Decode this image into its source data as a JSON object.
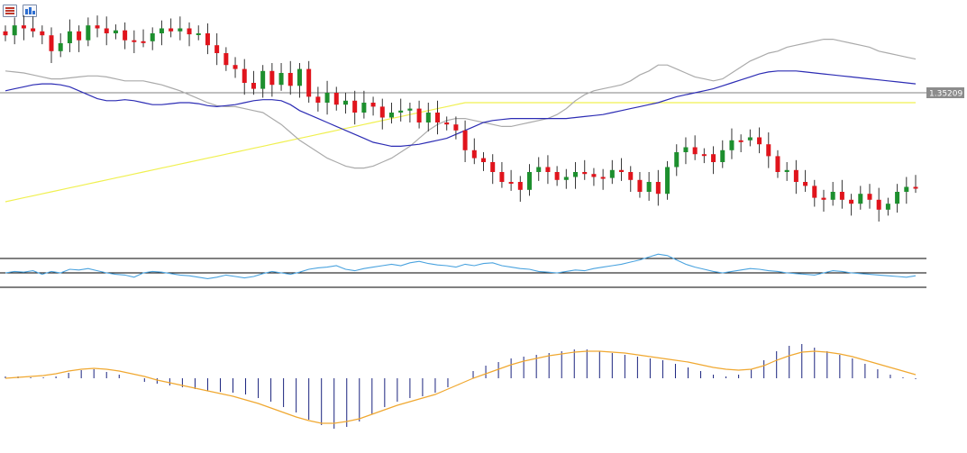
{
  "toolbar": {
    "buttons": [
      {
        "icon": "indicator-list-icon"
      },
      {
        "icon": "object-list-icon"
      }
    ]
  },
  "price_label": "1.35209",
  "colors": {
    "bull": "#1d8f2e",
    "bear": "#e0141c",
    "ma_slow": "#2c2cb4",
    "ma_fast": "#aaaaaa",
    "ma_long": "#f0f050",
    "rsi": "#4aa3df",
    "macd_hist": "#1a237e",
    "macd_signal": "#f0a830",
    "price_line": "#808080",
    "price_tag_bg": "#8c8c8c"
  },
  "chart_data": [
    {
      "type": "candlestick",
      "last_price": 1.35209,
      "indicators": [
        "moving-average-slow",
        "moving-average-fast",
        "moving-average-long"
      ],
      "close": [
        62,
        52,
        55,
        58,
        62,
        78,
        70,
        58,
        67,
        52,
        55,
        60,
        57,
        67,
        68,
        68,
        60,
        55,
        58,
        55,
        61,
        60,
        72,
        80,
        92,
        96,
        110,
        116,
        98,
        112,
        100,
        113,
        96,
        124,
        130,
        120,
        132,
        128,
        140,
        130,
        134,
        145,
        140,
        138,
        136,
        150,
        140,
        150,
        152,
        158,
        178,
        186,
        190,
        200,
        210,
        210,
        218,
        200,
        195,
        200,
        208,
        205,
        200,
        202,
        205,
        206,
        198,
        200,
        208,
        220,
        210,
        222,
        195,
        180,
        175,
        182,
        182,
        190,
        178,
        168,
        168,
        165,
        172,
        184,
        200,
        198,
        210,
        214,
        226,
        228,
        220,
        228,
        232,
        222,
        228,
        238,
        232,
        220,
        215,
        215
      ],
      "ma_slow": [
        118,
        116,
        114,
        112,
        111,
        111,
        112,
        114,
        118,
        122,
        126,
        128,
        128,
        127,
        128,
        130,
        132,
        132,
        131,
        130,
        130,
        131,
        133,
        134,
        133,
        132,
        130,
        128,
        127,
        127,
        128,
        132,
        138,
        142,
        146,
        150,
        154,
        158,
        162,
        166,
        170,
        172,
        174,
        174,
        173,
        172,
        170,
        168,
        166,
        162,
        158,
        154,
        150,
        148,
        147,
        146,
        146,
        146,
        146,
        146,
        146,
        146,
        145,
        144,
        143,
        142,
        140,
        138,
        136,
        134,
        132,
        130,
        127,
        124,
        122,
        120,
        118,
        116,
        113,
        110,
        107,
        104,
        101,
        99,
        98,
        98,
        98,
        99,
        100,
        101,
        102,
        103,
        104,
        105,
        106,
        107,
        108,
        109,
        110,
        111
      ],
      "ma_fast": [
        98,
        99,
        100,
        102,
        104,
        106,
        106,
        105,
        104,
        103,
        103,
        104,
        106,
        108,
        108,
        108,
        110,
        112,
        115,
        118,
        122,
        126,
        130,
        133,
        134,
        134,
        136,
        138,
        140,
        146,
        152,
        160,
        168,
        174,
        180,
        186,
        190,
        194,
        196,
        196,
        194,
        190,
        186,
        180,
        174,
        166,
        158,
        152,
        148,
        146,
        146,
        148,
        150,
        152,
        154,
        154,
        152,
        150,
        148,
        146,
        142,
        136,
        128,
        122,
        118,
        116,
        114,
        112,
        108,
        102,
        98,
        92,
        92,
        96,
        100,
        104,
        106,
        108,
        106,
        100,
        94,
        88,
        84,
        80,
        78,
        74,
        72,
        70,
        68,
        66,
        66,
        68,
        70,
        72,
        74,
        78,
        80,
        82,
        84,
        86
      ],
      "ma_long": [
        230,
        228,
        226,
        224,
        222,
        220,
        218,
        216,
        214,
        212,
        210,
        208,
        206,
        204,
        202,
        200,
        198,
        196,
        194,
        192,
        190,
        188,
        186,
        184,
        182,
        180,
        178,
        176,
        174,
        172,
        170,
        168,
        166,
        164,
        162,
        160,
        158,
        156,
        154,
        152,
        150,
        148,
        146,
        144,
        142,
        140,
        138,
        136,
        134,
        132,
        130,
        130,
        130,
        130,
        130,
        130,
        130,
        130,
        130,
        130,
        130,
        130,
        130,
        130,
        130,
        130,
        130,
        130,
        130,
        130,
        130,
        130,
        130,
        130,
        130,
        130,
        130,
        130,
        130,
        130,
        130,
        130,
        130,
        130,
        130,
        130,
        130,
        130,
        130,
        130,
        130,
        130,
        130,
        130,
        130,
        130,
        130,
        130,
        130,
        130
      ]
    },
    {
      "type": "line",
      "levels": [
        70,
        50,
        30
      ],
      "ylim": [
        20,
        80
      ],
      "values": [
        50,
        52,
        51,
        53,
        48,
        52,
        50,
        55,
        54,
        56,
        53,
        50,
        48,
        47,
        44,
        50,
        52,
        51,
        49,
        47,
        46,
        44,
        42,
        44,
        47,
        45,
        43,
        45,
        49,
        52,
        50,
        48,
        51,
        55,
        57,
        58,
        60,
        55,
        53,
        56,
        58,
        60,
        62,
        60,
        64,
        66,
        63,
        61,
        60,
        58,
        62,
        60,
        63,
        64,
        60,
        58,
        56,
        55,
        52,
        51,
        50,
        52,
        54,
        53,
        56,
        58,
        60,
        62,
        65,
        68,
        72,
        76,
        74,
        68,
        62,
        58,
        55,
        52,
        50,
        52,
        54,
        56,
        55,
        53,
        52,
        50,
        49,
        48,
        47,
        50,
        53,
        52,
        50,
        49,
        48,
        47,
        46,
        45,
        44,
        46
      ]
    },
    {
      "type": "bar",
      "series": [
        {
          "values": [
            0.2,
            0.2,
            0.1,
            0.1,
            0.2,
            0.6,
            0.9,
            1.0,
            0.7,
            0.4,
            0.0,
            -0.4,
            -0.6,
            -0.8,
            -1.0,
            -1.2,
            -1.4,
            -1.5,
            -1.6,
            -1.8,
            -2.2,
            -2.6,
            -3.2,
            -3.8,
            -4.6,
            -5.2,
            -5.6,
            -5.4,
            -4.8,
            -4.0,
            -3.2,
            -2.6,
            -2.2,
            -2.0,
            -1.6,
            -1.0,
            0.0,
            0.8,
            1.4,
            1.8,
            2.2,
            2.4,
            2.6,
            2.8,
            3.0,
            3.2,
            3.2,
            3.0,
            2.8,
            2.6,
            2.4,
            2.2,
            2.0,
            1.6,
            1.2,
            0.8,
            0.4,
            0.2,
            0.4,
            1.0,
            2.0,
            3.0,
            3.6,
            3.8,
            3.4,
            3.0,
            2.6,
            2.2,
            1.6,
            1.0,
            0.4,
            0.1,
            -0.1
          ]
        },
        {
          "values": [
            0.0,
            0.1,
            0.2,
            0.3,
            0.5,
            0.8,
            1.0,
            1.1,
            1.0,
            0.8,
            0.5,
            0.2,
            -0.2,
            -0.5,
            -0.8,
            -1.1,
            -1.4,
            -1.7,
            -2.0,
            -2.4,
            -2.8,
            -3.3,
            -3.8,
            -4.3,
            -4.7,
            -5.0,
            -5.0,
            -4.8,
            -4.5,
            -4.0,
            -3.5,
            -3.0,
            -2.6,
            -2.2,
            -1.8,
            -1.2,
            -0.6,
            0.0,
            0.5,
            1.0,
            1.5,
            1.9,
            2.2,
            2.5,
            2.7,
            2.9,
            3.0,
            3.0,
            2.9,
            2.8,
            2.6,
            2.4,
            2.2,
            2.0,
            1.8,
            1.5,
            1.2,
            1.0,
            0.9,
            1.0,
            1.4,
            2.0,
            2.5,
            2.9,
            3.0,
            2.9,
            2.7,
            2.4,
            2.0,
            1.6,
            1.2,
            0.8,
            0.4
          ]
        }
      ]
    }
  ]
}
